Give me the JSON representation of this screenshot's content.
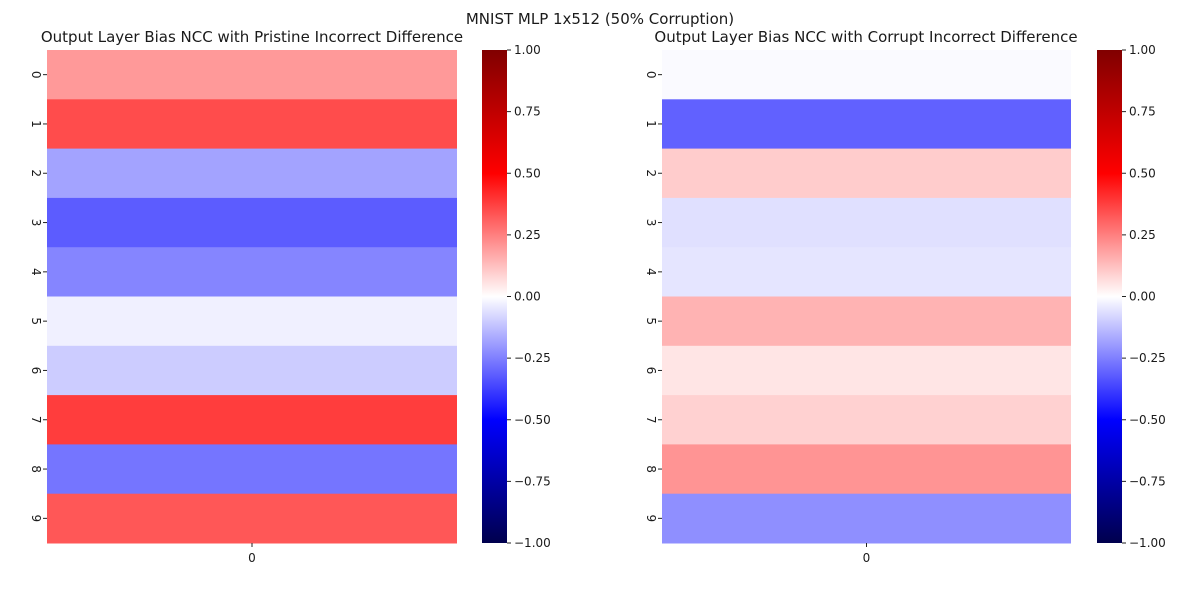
{
  "figure": {
    "suptitle": "MNIST MLP 1x512 (50% Corruption)"
  },
  "chart_data": [
    {
      "type": "heatmap",
      "title": "Output Layer Bias NCC with Pristine Incorrect Difference",
      "xlabel": "",
      "ylabel": "",
      "x_tick_labels": [
        "0"
      ],
      "y_tick_labels": [
        "0",
        "1",
        "2",
        "3",
        "4",
        "5",
        "6",
        "7",
        "8",
        "9"
      ],
      "values": [
        0.2,
        0.35,
        -0.18,
        -0.32,
        -0.24,
        -0.03,
        -0.1,
        0.38,
        -0.27,
        0.33
      ],
      "colormap": "seismic",
      "vmin": -1.0,
      "vmax": 1.0,
      "colorbar_ticks": [
        "1.00",
        "0.75",
        "0.50",
        "0.25",
        "0.00",
        "−0.25",
        "−0.50",
        "−0.75",
        "−1.00"
      ]
    },
    {
      "type": "heatmap",
      "title": "Output Layer Bias NCC with Corrupt Incorrect Difference",
      "xlabel": "",
      "ylabel": "",
      "x_tick_labels": [
        "0"
      ],
      "y_tick_labels": [
        "0",
        "1",
        "2",
        "3",
        "4",
        "5",
        "6",
        "7",
        "8",
        "9"
      ],
      "values": [
        -0.01,
        -0.31,
        0.1,
        -0.06,
        -0.05,
        0.15,
        0.05,
        0.09,
        0.21,
        -0.22
      ],
      "colormap": "seismic",
      "vmin": -1.0,
      "vmax": 1.0,
      "colorbar_ticks": [
        "1.00",
        "0.75",
        "0.50",
        "0.25",
        "0.00",
        "−0.25",
        "−0.50",
        "−0.75",
        "−1.00"
      ]
    }
  ]
}
